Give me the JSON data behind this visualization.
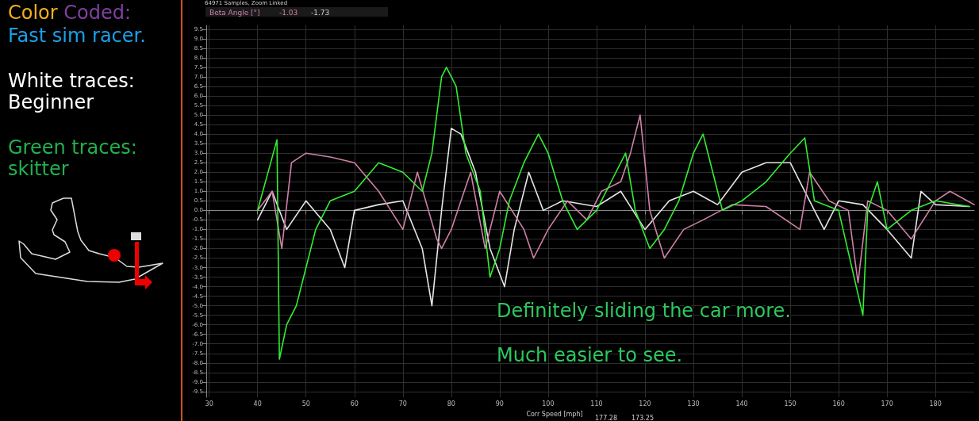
{
  "chart_data": {
    "type": "line",
    "xlabel": "Corr Speed [mph]",
    "ylabel": "Beta Angle [°]",
    "xlim": [
      29.4,
      188
    ],
    "ylim": [
      -9.8,
      9.7
    ],
    "xticks": [
      30,
      40,
      50,
      60,
      70,
      80,
      90,
      100,
      110,
      120,
      130,
      140,
      150,
      160,
      170,
      180
    ],
    "yticks": [
      9.5,
      {
        "value": 9,
        "label": "9.0"
      },
      8.5,
      {
        "value": 8,
        "label": "8.0"
      },
      7.5,
      {
        "value": 7,
        "label": "7.0"
      },
      6.5,
      {
        "value": 6,
        "label": "6.0"
      },
      5.5,
      {
        "value": 5,
        "label": "5.0"
      },
      4.5,
      {
        "value": 4,
        "label": "4.0"
      },
      3.5,
      {
        "value": 3,
        "label": "3.0"
      },
      2.5,
      {
        "value": 2,
        "label": "2.0"
      },
      1.5,
      {
        "value": 1,
        "label": "1.0"
      },
      0.5,
      {
        "value": 0,
        "label": "0.0"
      },
      -0.5,
      {
        "value": -1,
        "label": "-1.0"
      },
      -1.5,
      {
        "value": -2,
        "label": "-2.0"
      },
      -2.5,
      {
        "value": -3,
        "label": "-3.0"
      },
      -3.5,
      {
        "value": -4,
        "label": "-4.0"
      },
      -4.5,
      {
        "value": -5,
        "label": "-5.0"
      },
      -5.5,
      {
        "value": -6,
        "label": "-6.0"
      },
      -6.5,
      {
        "value": -7,
        "label": "-7.0"
      },
      -7.5,
      {
        "value": -8,
        "label": "-8.0"
      },
      -8.5,
      {
        "value": -9,
        "label": "-9.0"
      },
      -9.5
    ],
    "grid": true,
    "marker": "none",
    "line_style": "solid",
    "series": [
      {
        "color": "#e6e6e6",
        "x": [
          40,
          43,
          46,
          50,
          55,
          58,
          60,
          65,
          70,
          74,
          76,
          78,
          80,
          82,
          85,
          88,
          91,
          93,
          96,
          99,
          103,
          110,
          115,
          120,
          125,
          130,
          135,
          140,
          145,
          150,
          153,
          157,
          160,
          165,
          170,
          175,
          177,
          180,
          187
        ],
        "values": [
          -0.5,
          1,
          -1,
          0.5,
          -1,
          -3,
          0,
          0.3,
          0.5,
          -2,
          -5,
          0,
          4.3,
          4,
          2,
          -2,
          -4,
          -1,
          2,
          0,
          0.5,
          0.2,
          1,
          -1,
          0.5,
          1,
          0.3,
          2,
          2.5,
          2.5,
          1,
          -1,
          0.5,
          0.3,
          -1,
          -2.5,
          1,
          0.3,
          0.2
        ]
      },
      {
        "color": "#d080a8",
        "x": [
          40,
          43,
          45,
          47,
          50,
          55,
          60,
          65,
          70,
          73,
          77,
          78,
          80,
          84,
          87,
          90,
          95,
          97,
          100,
          104,
          108,
          111,
          115,
          117,
          119,
          121,
          124,
          128,
          132,
          138,
          145,
          152,
          154,
          158,
          162,
          164,
          166,
          170,
          175,
          180,
          183,
          188
        ],
        "values": [
          0,
          1,
          -2,
          2.5,
          3,
          2.8,
          2.5,
          1,
          -1,
          2,
          -1.5,
          -2,
          -1,
          2,
          -2,
          1,
          -1,
          -2.5,
          -1,
          0.5,
          -0.5,
          1,
          1.5,
          3,
          5,
          0,
          -2.5,
          -1,
          -0.5,
          0.3,
          0.2,
          -1,
          2,
          0.5,
          0,
          -3.8,
          0.5,
          0,
          -1.5,
          0.5,
          1,
          0.3
        ]
      },
      {
        "color": "#33ee33",
        "x": [
          40,
          44,
          44.5,
          46,
          48,
          50,
          52,
          55,
          60,
          65,
          70,
          74,
          76,
          78,
          79,
          81,
          83,
          86,
          88,
          90,
          92,
          95,
          98,
          100,
          103,
          106,
          110,
          113,
          116,
          118,
          121,
          124,
          127,
          130,
          132,
          134,
          136,
          140,
          145,
          150,
          153,
          155,
          160,
          165,
          166,
          168,
          170,
          175,
          180,
          187
        ],
        "values": [
          0,
          3.7,
          -7.8,
          -6,
          -5,
          -3,
          -1,
          0.5,
          1,
          2.5,
          2,
          1,
          3,
          7,
          7.5,
          6.5,
          3,
          1,
          -3.5,
          -2,
          0.5,
          2.5,
          4,
          3,
          0.5,
          -1,
          0,
          1.5,
          3,
          0,
          -2,
          -1,
          0.5,
          3,
          4,
          2,
          0,
          0.5,
          1.5,
          3,
          3.8,
          0.5,
          0,
          -5.5,
          0,
          1.5,
          -1,
          0,
          0.5,
          0.2
        ]
      }
    ],
    "annotations": [
      "Color",
      "Coded:",
      "Fast sim racer.",
      "White traces:",
      "Beginner",
      "Green traces:",
      "skitter",
      "64971 Samples, Zoom Linked",
      "-1.03",
      "-1.73",
      "177.28",
      "173.25",
      "Definitely sliding the car more.",
      "Much easier to see."
    ]
  }
}
